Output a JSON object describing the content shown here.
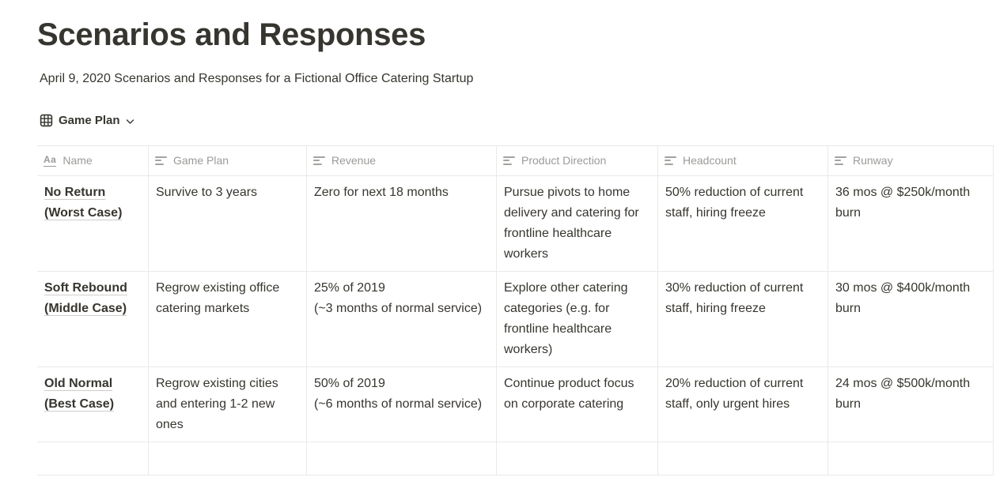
{
  "page": {
    "title": "Scenarios and Responses",
    "subtitle": "April 9, 2020 Scenarios and Responses for a Fictional Office Catering Startup"
  },
  "view": {
    "name": "Game Plan",
    "icon": "table-view-icon",
    "chevron": "chevron-down-icon"
  },
  "colors": {
    "text": "#37352f",
    "muted_header": "#9b9a97",
    "border": "#e9e9e7",
    "name_underline": "#cfcdc9",
    "background": "#ffffff"
  },
  "table": {
    "columns": [
      {
        "label": "Name",
        "icon": "title-icon"
      },
      {
        "label": "Game Plan",
        "icon": "text-icon"
      },
      {
        "label": "Revenue",
        "icon": "text-icon"
      },
      {
        "label": "Product Direction",
        "icon": "text-icon"
      },
      {
        "label": "Headcount",
        "icon": "text-icon"
      },
      {
        "label": "Runway",
        "icon": "text-icon"
      }
    ],
    "rows": [
      {
        "cells": [
          "No Return\n(Worst Case)",
          "Survive to 3 years",
          "Zero for next 18 months",
          "Pursue pivots to home delivery and catering for frontline healthcare workers",
          "50% reduction of current staff, hiring freeze",
          "36 mos @ $250k/month burn"
        ]
      },
      {
        "cells": [
          "Soft Rebound\n(Middle Case)",
          "Regrow existing office catering markets",
          "25% of 2019\n(~3 months of normal service)",
          "Explore other catering categories (e.g. for frontline healthcare workers)",
          "30% reduction of current staff, hiring freeze",
          "30 mos @ $400k/month burn"
        ]
      },
      {
        "cells": [
          "Old Normal\n(Best Case)",
          "Regrow existing cities and entering 1-2 new ones",
          "50% of 2019\n(~6 months of normal service)",
          "Continue product focus on corporate catering",
          "20% reduction of current staff, only urgent hires",
          "24 mos @ $500k/month burn"
        ]
      },
      {
        "cells": [
          "",
          "",
          "",
          "",
          "",
          ""
        ]
      }
    ]
  }
}
